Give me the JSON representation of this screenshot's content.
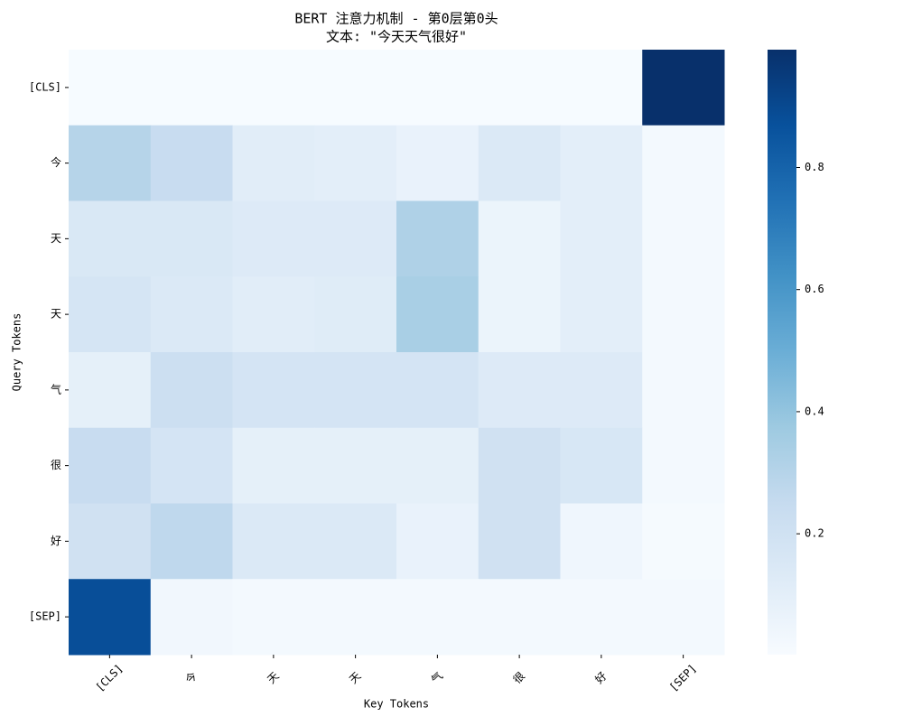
{
  "chart_data": {
    "type": "heatmap",
    "title": "BERT 注意力机制 - 第0层第0头",
    "subtitle": "文本: \"今天天气很好\"",
    "xlabel": "Key Tokens",
    "ylabel": "Query Tokens",
    "x_categories": [
      "[CLS]",
      "今",
      "天",
      "天",
      "气",
      "很",
      "好",
      "[SEP]"
    ],
    "y_categories": [
      "[CLS]",
      "今",
      "天",
      "天",
      "气",
      "很",
      "好",
      "[SEP]"
    ],
    "values": [
      [
        0.005,
        0.005,
        0.005,
        0.005,
        0.005,
        0.005,
        0.005,
        0.993
      ],
      [
        0.3,
        0.24,
        0.11,
        0.1,
        0.07,
        0.14,
        0.1,
        0.02
      ],
      [
        0.15,
        0.15,
        0.13,
        0.13,
        0.32,
        0.06,
        0.1,
        0.02
      ],
      [
        0.17,
        0.14,
        0.11,
        0.12,
        0.34,
        0.06,
        0.1,
        0.02
      ],
      [
        0.09,
        0.22,
        0.18,
        0.18,
        0.18,
        0.13,
        0.13,
        0.02
      ],
      [
        0.24,
        0.18,
        0.09,
        0.09,
        0.09,
        0.2,
        0.16,
        0.02
      ],
      [
        0.2,
        0.27,
        0.14,
        0.14,
        0.07,
        0.2,
        0.04,
        0.01
      ],
      [
        0.88,
        0.03,
        0.02,
        0.02,
        0.02,
        0.02,
        0.02,
        0.02
      ]
    ],
    "zlim": [
      0.002,
      0.993
    ],
    "zticks": [
      0.2,
      0.4,
      0.6,
      0.8
    ],
    "colorscale": [
      "#f7fbff",
      "#deebf7",
      "#c6dbef",
      "#9ecae1",
      "#6baed6",
      "#4292c6",
      "#2171b5",
      "#08519c",
      "#08306b"
    ]
  }
}
